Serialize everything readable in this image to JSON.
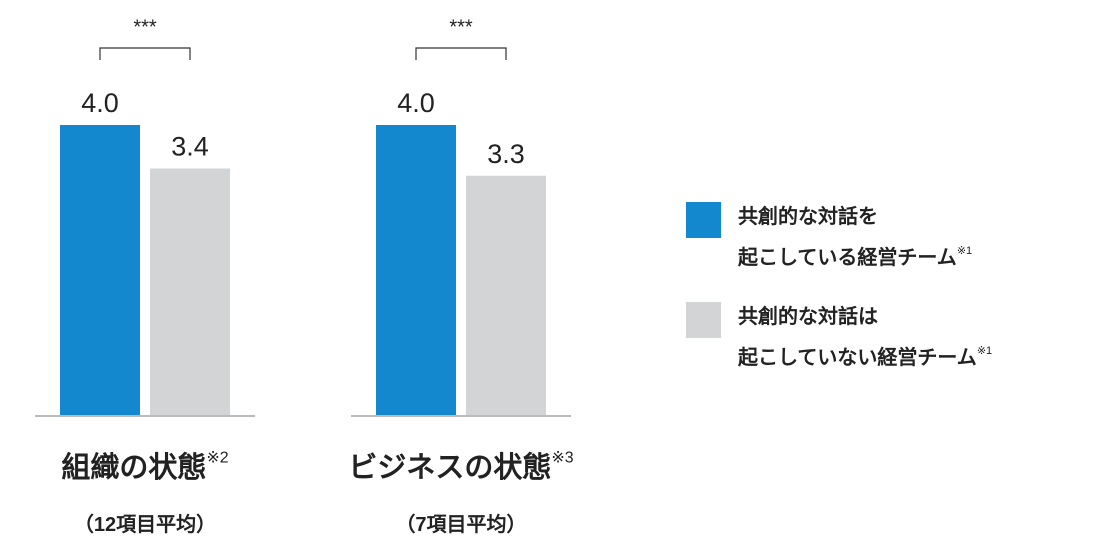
{
  "chart_data": {
    "type": "bar",
    "categories": [
      "組織の状態",
      "ビジネスの状態"
    ],
    "category_notes": [
      "※2",
      "※3"
    ],
    "category_sublabels": [
      "（12項目平均）",
      "（7項目平均）"
    ],
    "significance": [
      "***",
      "***"
    ],
    "series": [
      {
        "name": "共創的な対話を\n起こしている経営チーム",
        "note": "※1",
        "color": "#1388cf",
        "values": [
          4.0,
          4.0
        ],
        "value_labels": [
          "4.0",
          "4.0"
        ]
      },
      {
        "name": "共創的な対話は\n起こしていない経営チーム",
        "note": "※1",
        "color": "#d3d4d6",
        "values": [
          3.4,
          3.3
        ],
        "value_labels": [
          "3.4",
          "3.3"
        ]
      }
    ],
    "ylim": [
      0,
      4.4
    ]
  }
}
